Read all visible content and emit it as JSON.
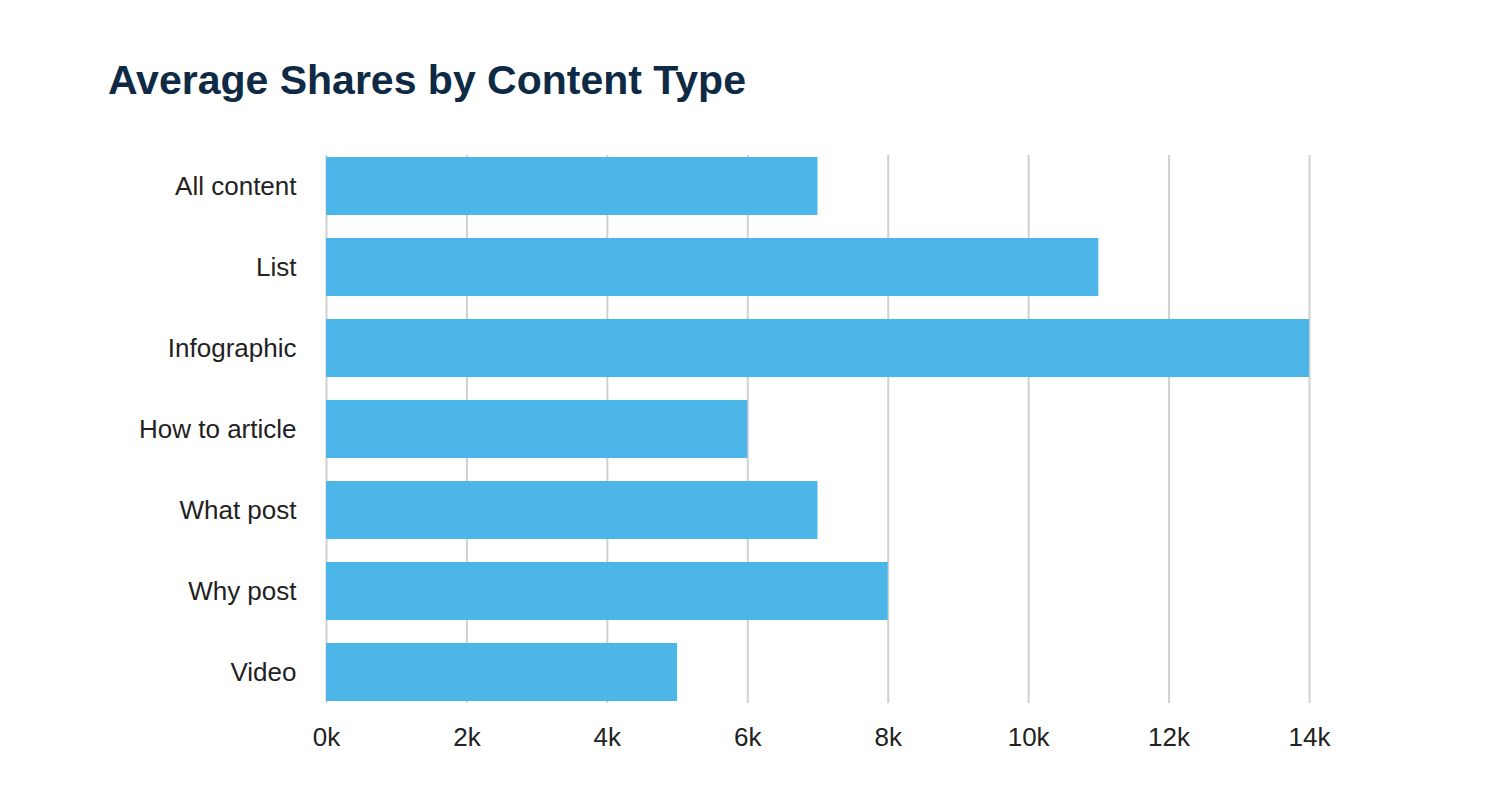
{
  "chart_data": {
    "type": "bar",
    "title": "Average Shares by Content Type",
    "orientation": "horizontal",
    "categories": [
      "All content",
      "List",
      "Infographic",
      "How to article",
      "What post",
      "Why post",
      "Video"
    ],
    "values": [
      7000,
      11000,
      14000,
      6000,
      7000,
      8000,
      5000
    ],
    "color": "#4db6e9",
    "xlim": [
      0,
      14000
    ],
    "xticks": [
      {
        "value": 0,
        "label": "0k"
      },
      {
        "value": 2000,
        "label": "2k"
      },
      {
        "value": 4000,
        "label": "4k"
      },
      {
        "value": 6000,
        "label": "6k"
      },
      {
        "value": 8000,
        "label": "8k"
      },
      {
        "value": 10000,
        "label": "10k"
      },
      {
        "value": 12000,
        "label": "12k"
      },
      {
        "value": 14000,
        "label": "14k"
      }
    ],
    "grid": true
  }
}
